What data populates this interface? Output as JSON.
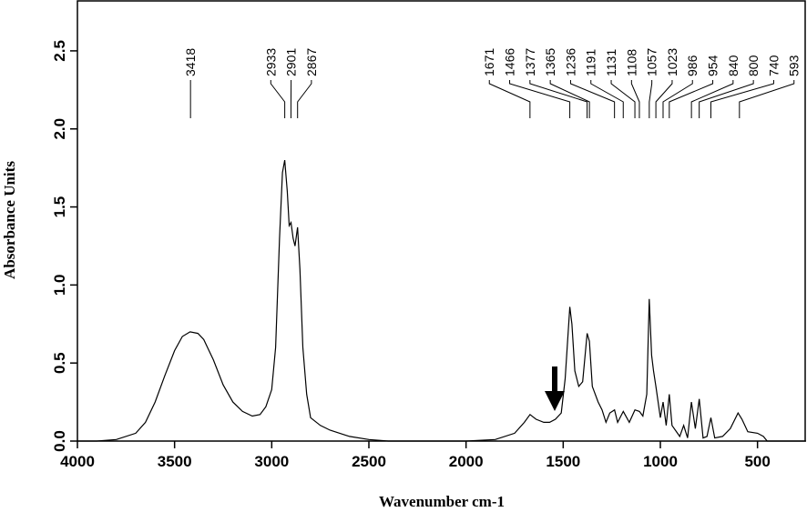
{
  "chart_data": {
    "type": "line",
    "xlabel": "Wavenumber cm-1",
    "ylabel": "Absorbance Units",
    "color": "#000000",
    "xlim": [
      4000,
      250
    ],
    "ylim": [
      0,
      2.82
    ],
    "xticks": [
      4000,
      3500,
      3000,
      2500,
      2000,
      1500,
      1000,
      500
    ],
    "yticks": [
      {
        "value": 0,
        "label": "0.0"
      },
      0.5,
      {
        "value": 1,
        "label": "1.0"
      },
      1.5,
      {
        "value": 2,
        "label": "2.0"
      },
      2.5
    ],
    "peak_labels": [
      3418,
      2933,
      2901,
      2867,
      1671,
      1466,
      1377,
      1365,
      1236,
      1191,
      1131,
      1108,
      1057,
      1023,
      986,
      954,
      840,
      800,
      740,
      593
    ],
    "x": [
      4000,
      3900,
      3800,
      3700,
      3650,
      3600,
      3550,
      3500,
      3460,
      3420,
      3380,
      3350,
      3300,
      3250,
      3200,
      3150,
      3100,
      3060,
      3030,
      3000,
      2980,
      2960,
      2945,
      2933,
      2920,
      2910,
      2901,
      2890,
      2880,
      2867,
      2855,
      2840,
      2820,
      2800,
      2750,
      2700,
      2650,
      2600,
      2500,
      2400,
      2000,
      1850,
      1750,
      1700,
      1671,
      1640,
      1600,
      1570,
      1540,
      1510,
      1490,
      1466,
      1455,
      1440,
      1420,
      1400,
      1377,
      1365,
      1350,
      1320,
      1300,
      1280,
      1260,
      1236,
      1220,
      1191,
      1160,
      1131,
      1108,
      1090,
      1070,
      1057,
      1045,
      1035,
      1023,
      1000,
      986,
      970,
      954,
      940,
      900,
      880,
      860,
      840,
      820,
      800,
      780,
      760,
      740,
      720,
      680,
      640,
      600,
      580,
      550,
      500,
      470,
      450,
      400,
      250
    ],
    "values": [
      0,
      0,
      0.01,
      0.05,
      0.12,
      0.25,
      0.42,
      0.58,
      0.67,
      0.7,
      0.69,
      0.65,
      0.52,
      0.36,
      0.25,
      0.19,
      0.16,
      0.17,
      0.22,
      0.33,
      0.6,
      1.3,
      1.72,
      1.8,
      1.6,
      1.38,
      1.4,
      1.3,
      1.25,
      1.37,
      1.1,
      0.6,
      0.3,
      0.15,
      0.1,
      0.07,
      0.05,
      0.03,
      0.01,
      0,
      0,
      0.01,
      0.05,
      0.12,
      0.17,
      0.14,
      0.12,
      0.12,
      0.14,
      0.18,
      0.4,
      0.86,
      0.75,
      0.45,
      0.35,
      0.38,
      0.69,
      0.64,
      0.35,
      0.25,
      0.2,
      0.12,
      0.18,
      0.2,
      0.12,
      0.19,
      0.12,
      0.2,
      0.19,
      0.16,
      0.3,
      0.91,
      0.55,
      0.45,
      0.35,
      0.15,
      0.25,
      0.1,
      0.3,
      0.1,
      0.03,
      0.1,
      0.02,
      0.25,
      0.08,
      0.27,
      0.02,
      0.03,
      0.15,
      0.02,
      0.03,
      0.08,
      0.18,
      0.14,
      0.06,
      0.05,
      0.03,
      0,
      0,
      0
    ]
  }
}
